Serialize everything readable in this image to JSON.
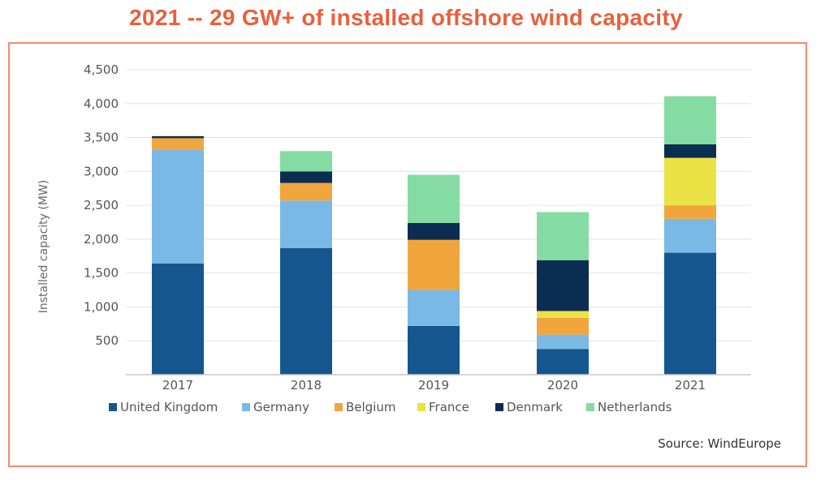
{
  "title": "2021 -- 29 GW+ of installed offshore wind capacity",
  "source": "Source: WindEurope",
  "colors": {
    "title": "#e8603c",
    "frame": "#f08a73"
  },
  "chart_data": {
    "type": "bar",
    "stacked": true,
    "title": "",
    "xlabel": "",
    "ylabel": "Installed capacity (MW)",
    "ylim": [
      0,
      4500
    ],
    "yticks": [
      500,
      1000,
      1500,
      2000,
      2500,
      3000,
      3500,
      4000,
      4500
    ],
    "ytick_labels": [
      "500",
      "1,000",
      "1,500",
      "2,000",
      "2,500",
      "3,000",
      "3,500",
      "4,000",
      "4,500"
    ],
    "grid": true,
    "legend_position": "bottom",
    "categories": [
      "2017",
      "2018",
      "2019",
      "2020",
      "2021"
    ],
    "series": [
      {
        "name": "United Kingdom",
        "color": "#15568f",
        "values": [
          1640,
          1870,
          720,
          380,
          1800
        ]
      },
      {
        "name": "Germany",
        "color": "#7ab9e5",
        "values": [
          1680,
          700,
          530,
          210,
          500
        ]
      },
      {
        "name": "Belgium",
        "color": "#f0a63c",
        "values": [
          170,
          260,
          740,
          250,
          200
        ]
      },
      {
        "name": "France",
        "color": "#ebe245",
        "values": [
          0,
          0,
          0,
          100,
          700
        ]
      },
      {
        "name": "Denmark",
        "color": "#0c2d52",
        "values": [
          30,
          170,
          250,
          750,
          200
        ]
      },
      {
        "name": "Netherlands",
        "color": "#84dca2",
        "values": [
          0,
          300,
          710,
          710,
          710
        ]
      }
    ]
  }
}
